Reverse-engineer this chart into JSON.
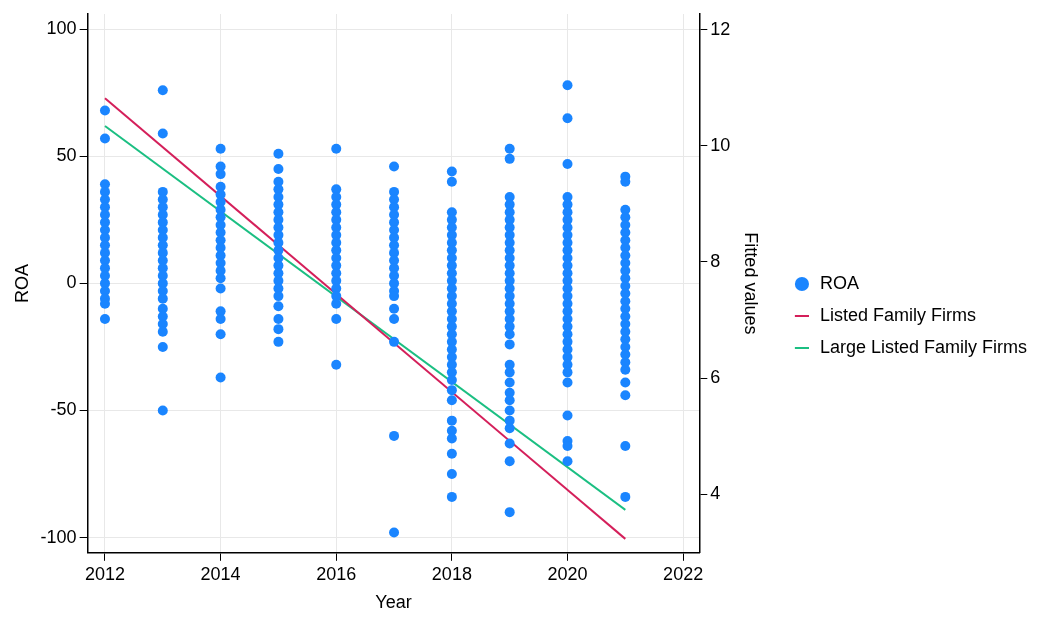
{
  "chart_data": {
    "type": "scatter",
    "xlabel": "Year",
    "ylabel": "ROA",
    "y2label": "Fitted values",
    "xlim": [
      2011.7,
      2022.28
    ],
    "xticks": [
      2012,
      2014,
      2016,
      2018,
      2020,
      2022
    ],
    "ylim": [
      -106,
      106
    ],
    "yticks": [
      -100,
      -50,
      0,
      50,
      100
    ],
    "y2lim": [
      2.99,
      12.27
    ],
    "y2ticks": [
      4,
      6,
      8,
      10,
      12
    ],
    "grid": true,
    "legend": "right",
    "series": [
      {
        "name": "ROA",
        "type": "scatter",
        "marker": "circle",
        "color": "#1a85ff",
        "x": [
          2012,
          2012,
          2012,
          2012,
          2012,
          2012,
          2012,
          2012,
          2012,
          2012,
          2012,
          2012,
          2012,
          2012,
          2012,
          2012,
          2012,
          2012,
          2012,
          2012,
          2013,
          2013,
          2013,
          2013,
          2013,
          2013,
          2013,
          2013,
          2013,
          2013,
          2013,
          2013,
          2013,
          2013,
          2013,
          2013,
          2013,
          2013,
          2013,
          2013,
          2013,
          2013,
          2013,
          2014,
          2014,
          2014,
          2014,
          2014,
          2014,
          2014,
          2014,
          2014,
          2014,
          2014,
          2014,
          2014,
          2014,
          2014,
          2014,
          2014,
          2014,
          2014,
          2014,
          2014,
          2015,
          2015,
          2015,
          2015,
          2015,
          2015,
          2015,
          2015,
          2015,
          2015,
          2015,
          2015,
          2015,
          2015,
          2015,
          2015,
          2015,
          2015,
          2015,
          2015,
          2015,
          2015,
          2016,
          2016,
          2016,
          2016,
          2016,
          2016,
          2016,
          2016,
          2016,
          2016,
          2016,
          2016,
          2016,
          2016,
          2016,
          2016,
          2016,
          2016,
          2016,
          2017,
          2017,
          2017,
          2017,
          2017,
          2017,
          2017,
          2017,
          2017,
          2017,
          2017,
          2017,
          2017,
          2017,
          2017,
          2017,
          2017,
          2017,
          2017,
          2017,
          2017,
          2018,
          2018,
          2018,
          2018,
          2018,
          2018,
          2018,
          2018,
          2018,
          2018,
          2018,
          2018,
          2018,
          2018,
          2018,
          2018,
          2018,
          2018,
          2018,
          2018,
          2018,
          2018,
          2018,
          2018,
          2018,
          2018,
          2018,
          2018,
          2018,
          2018,
          2018,
          2018,
          2018,
          2019,
          2019,
          2019,
          2019,
          2019,
          2019,
          2019,
          2019,
          2019,
          2019,
          2019,
          2019,
          2019,
          2019,
          2019,
          2019,
          2019,
          2019,
          2019,
          2019,
          2019,
          2019,
          2019,
          2019,
          2019,
          2019,
          2019,
          2019,
          2019,
          2019,
          2019,
          2019,
          2019,
          2020,
          2020,
          2020,
          2020,
          2020,
          2020,
          2020,
          2020,
          2020,
          2020,
          2020,
          2020,
          2020,
          2020,
          2020,
          2020,
          2020,
          2020,
          2020,
          2020,
          2020,
          2020,
          2020,
          2020,
          2020,
          2020,
          2020,
          2020,
          2020,
          2020,
          2020,
          2020,
          2021,
          2021,
          2021,
          2021,
          2021,
          2021,
          2021,
          2021,
          2021,
          2021,
          2021,
          2021,
          2021,
          2021,
          2021,
          2021,
          2021,
          2021,
          2021,
          2021,
          2021,
          2021,
          2021,
          2021,
          2021,
          2021,
          2021,
          2021
        ],
        "values": [
          68,
          57,
          39,
          36,
          33,
          30,
          27,
          24,
          21,
          18,
          15,
          12,
          9,
          6,
          3,
          0,
          -3,
          -6,
          -8,
          -14,
          76,
          59,
          36,
          33,
          30,
          27,
          24,
          21,
          18,
          15,
          12,
          9,
          6,
          3,
          0,
          -3,
          -6,
          -10,
          -13,
          -16,
          -19,
          -25,
          -50,
          53,
          46,
          43,
          38,
          35,
          32,
          29,
          26,
          23,
          20,
          17,
          14,
          11,
          8,
          5,
          2,
          -2,
          -11,
          -14,
          -20,
          -37,
          51,
          45,
          40,
          37,
          34,
          31,
          28,
          25,
          22,
          19,
          16,
          13,
          10,
          7,
          4,
          1,
          -2,
          -5,
          -9,
          -14,
          -18,
          -23,
          53,
          37,
          34,
          31,
          28,
          25,
          22,
          19,
          16,
          13,
          10,
          7,
          4,
          1,
          -2,
          -5,
          -8,
          -14,
          -32,
          46,
          36,
          33,
          30,
          27,
          24,
          21,
          18,
          15,
          12,
          9,
          6,
          3,
          0,
          -3,
          -5,
          -10,
          -14,
          -23,
          -60,
          -98,
          44,
          40,
          28,
          25,
          22,
          19,
          16,
          13,
          10,
          7,
          4,
          1,
          -2,
          -5,
          -8,
          -11,
          -14,
          -17,
          -20,
          -23,
          -26,
          -29,
          -32,
          -35,
          -38,
          -42,
          -46,
          -54,
          -58,
          -61,
          -67,
          -75,
          -84,
          53,
          49,
          34,
          31,
          28,
          25,
          22,
          19,
          16,
          13,
          10,
          7,
          4,
          1,
          -2,
          -5,
          -8,
          -11,
          -14,
          -17,
          -20,
          -24,
          -32,
          -35,
          -39,
          -43,
          -46,
          -50,
          -54,
          -57,
          -63,
          -70,
          -90,
          78,
          65,
          47,
          34,
          31,
          28,
          25,
          22,
          19,
          16,
          13,
          10,
          7,
          4,
          1,
          -2,
          -5,
          -8,
          -11,
          -14,
          -17,
          -20,
          -23,
          -26,
          -29,
          -32,
          -35,
          -39,
          -52,
          -62,
          -64,
          -70,
          42,
          40,
          29,
          26,
          23,
          20,
          17,
          14,
          11,
          8,
          5,
          2,
          -1,
          -4,
          -7,
          -10,
          -13,
          -16,
          -19,
          -22,
          -25,
          -28,
          -31,
          -34,
          -39,
          -44,
          -64,
          -84
        ]
      },
      {
        "name": "Listed Family Firms",
        "type": "line",
        "axis": "y2",
        "color": "#d41f5a",
        "x": [
          2012,
          2021
        ],
        "values": [
          10.82,
          3.23
        ]
      },
      {
        "name": "Large Listed Family Firms",
        "type": "line",
        "axis": "y2",
        "color": "#1bbf82",
        "x": [
          2012,
          2021
        ],
        "values": [
          10.34,
          3.73
        ]
      }
    ]
  }
}
